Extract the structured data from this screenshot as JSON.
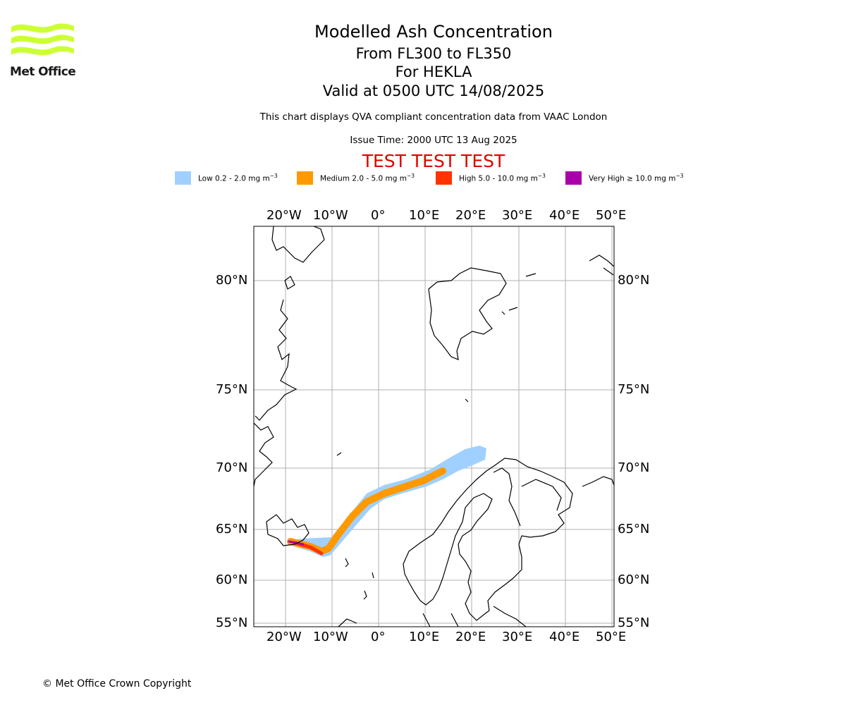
{
  "logo": {
    "text": "Met Office",
    "colors": {
      "waves": "#ccff33",
      "text": "#1a1a1a"
    }
  },
  "header": {
    "title": "Modelled Ash Concentration",
    "line1": "From FL300 to FL350",
    "line2": "For HEKLA",
    "line3": "Valid at 0500 UTC 14/08/2025",
    "subtitle": "This chart displays QVA compliant concentration data from VAAC London",
    "issue_time": "Issue Time: 2000 UTC 13 Aug 2025",
    "test_banner": "TEST TEST TEST"
  },
  "legend": [
    {
      "label": "Low 0.2 - 2.0 mg m",
      "color": "#a0d0ff"
    },
    {
      "label": "Medium 2.0 - 5.0 mg m",
      "color": "#ff9900"
    },
    {
      "label": "High 5.0 - 10.0 mg m",
      "color": "#ff3300"
    },
    {
      "label": "Very High ≥ 10.0 mg m",
      "color": "#aa00aa"
    }
  ],
  "legend_unit_exponent": "−3",
  "map": {
    "lon_ticks": [
      "20°W",
      "10°W",
      "0°",
      "10°E",
      "20°E",
      "30°E",
      "40°E",
      "50°E"
    ],
    "lat_ticks": [
      "80°N",
      "75°N",
      "70°N",
      "65°N",
      "60°N",
      "55°N"
    ],
    "grid": true,
    "colors": {
      "grid": "#b0b0b0",
      "coast": "#000000",
      "frame": "#000000"
    }
  },
  "footer": {
    "copyright": "© Met Office Crown Copyright"
  }
}
